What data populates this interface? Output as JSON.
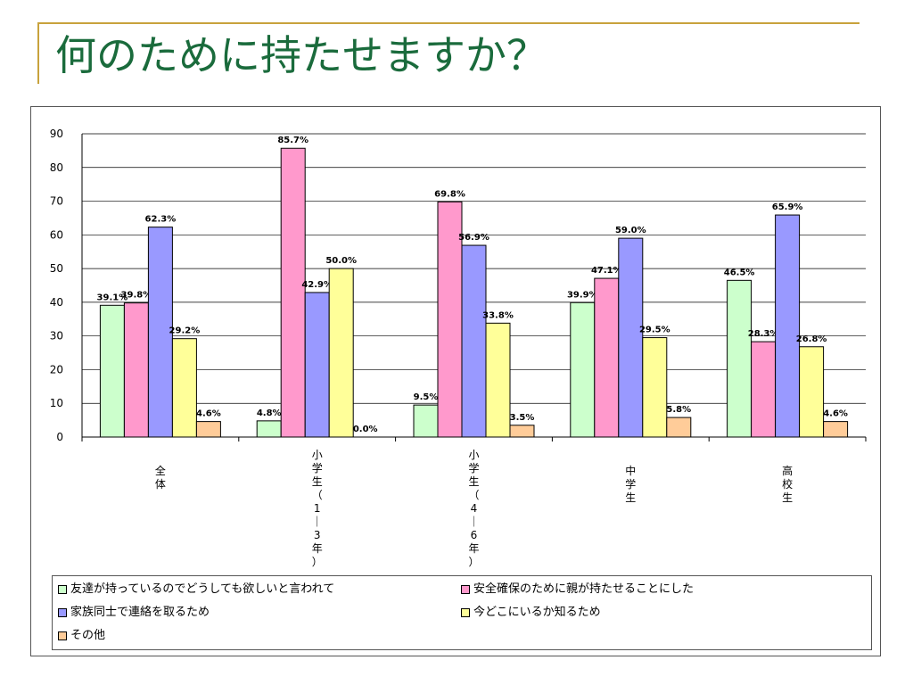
{
  "slide": {
    "title": "何のために持たせますか？"
  },
  "colors": {
    "accent": "#c8a23c",
    "title": "#1a6b3c",
    "series": [
      "#ccffcc",
      "#ff99cc",
      "#9999ff",
      "#ffff99",
      "#ffcc99"
    ]
  },
  "chart_data": {
    "type": "bar",
    "title": "",
    "xlabel": "",
    "ylabel": "",
    "ylim": [
      0,
      90
    ],
    "yticks": [
      0,
      10,
      20,
      30,
      40,
      50,
      60,
      70,
      80,
      90
    ],
    "grid": true,
    "legend_position": "bottom",
    "categories": [
      [
        "全",
        "体"
      ],
      [
        "小",
        "学",
        "生",
        "（",
        "1",
        "｜",
        "3",
        "年",
        "）"
      ],
      [
        "小",
        "学",
        "生",
        "（",
        "4",
        "｜",
        "6",
        "年",
        "）"
      ],
      [
        "中",
        "学",
        "生"
      ],
      [
        "高",
        "校",
        "生"
      ]
    ],
    "series": [
      {
        "name": "友達が持っているのでどうしても欲しいと言われて",
        "values": [
          39.1,
          4.8,
          9.5,
          39.9,
          46.5
        ],
        "labels": [
          "39.1%",
          "4.8%",
          "9.5%",
          "39.9%",
          "46.5%"
        ]
      },
      {
        "name": "安全確保のために親が持たせることにした",
        "values": [
          39.8,
          85.7,
          69.8,
          47.1,
          28.3
        ],
        "labels": [
          "39.8%",
          "85.7%",
          "69.8%",
          "47.1%",
          "28.3%"
        ]
      },
      {
        "name": "家族同士で連絡を取るため",
        "values": [
          62.3,
          42.9,
          56.9,
          59.0,
          65.9
        ],
        "labels": [
          "62.3%",
          "42.9%",
          "56.9%",
          "59.0%",
          "65.9%"
        ]
      },
      {
        "name": "今どこにいるか知るため",
        "values": [
          29.2,
          50.0,
          33.8,
          29.5,
          26.8
        ],
        "labels": [
          "29.2%",
          "50.0%",
          "33.8%",
          "29.5%",
          "26.8%"
        ]
      },
      {
        "name": "その他",
        "values": [
          4.6,
          0.0,
          3.5,
          5.8,
          4.6
        ],
        "labels": [
          "4.6%",
          "0.0%",
          "3.5%",
          "5.8%",
          "4.6%"
        ]
      }
    ]
  }
}
